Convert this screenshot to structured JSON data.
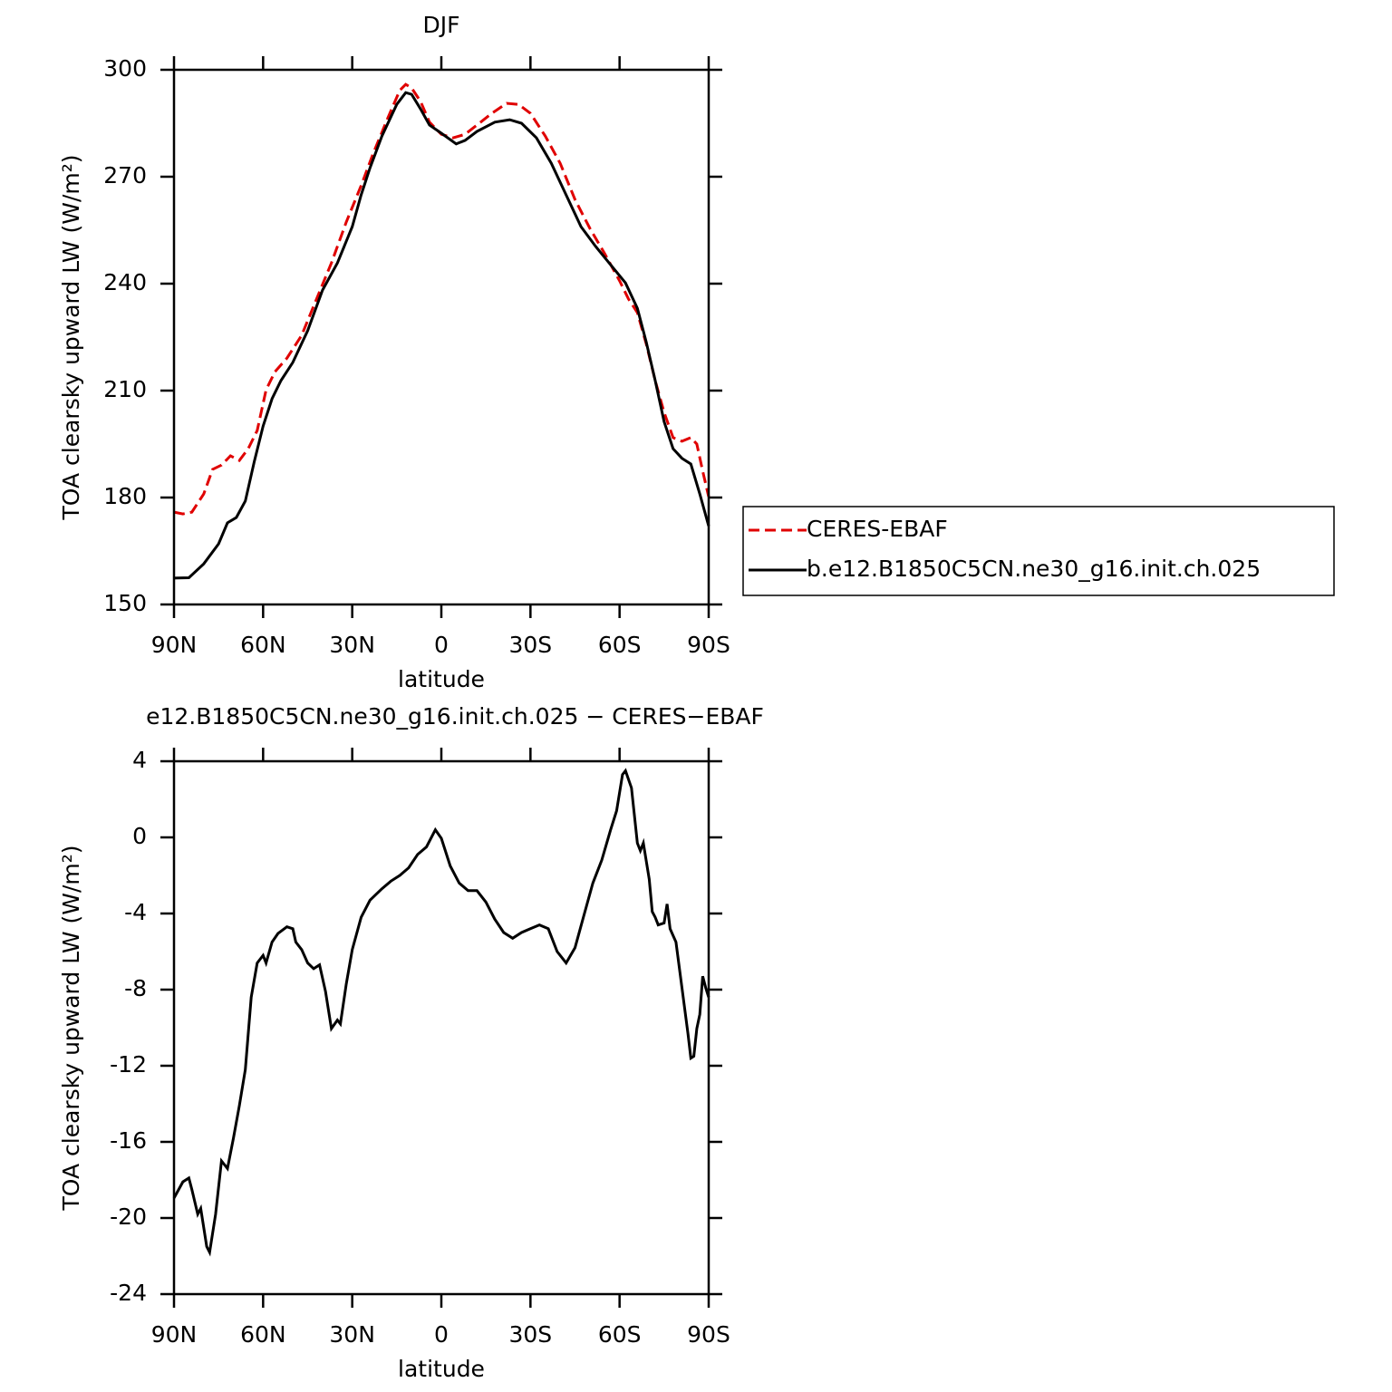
{
  "chart_data": [
    {
      "type": "line",
      "title": "DJF",
      "x_label": "latitude",
      "y_label": "TOA clearsky upward LW (W/m²)",
      "xlim": [
        90,
        -90
      ],
      "xticks": [
        {
          "value": 90,
          "label": "90N"
        },
        {
          "value": 60,
          "label": "60N"
        },
        {
          "value": 30,
          "label": "30N"
        },
        0,
        {
          "value": -30,
          "label": "30S"
        },
        {
          "value": -60,
          "label": "60S"
        },
        {
          "value": -90,
          "label": "90S"
        }
      ],
      "ylim": [
        150,
        300
      ],
      "yticks": [
        150,
        180,
        210,
        240,
        270,
        300
      ],
      "legend": "right",
      "series": [
        {
          "name": "CERES-EBAF",
          "color": "#e00000",
          "line_style": "dashed",
          "x": [
            90,
            87,
            84,
            80,
            77,
            74,
            71,
            68,
            65,
            62,
            59,
            56,
            52,
            47,
            42,
            37,
            32,
            27,
            23,
            18,
            14,
            12,
            10,
            7,
            4,
            0,
            -4,
            -8,
            -12,
            -17,
            -22,
            -26,
            -30,
            -35,
            -40,
            -45,
            -50,
            -55,
            -60,
            -63,
            -66,
            -69,
            -72,
            -75,
            -78,
            -81,
            -84,
            -86,
            -88,
            -90
          ],
          "values": [
            175.9,
            175.4,
            175.9,
            181,
            187.9,
            189.1,
            191.7,
            190.4,
            193.7,
            198.8,
            210.2,
            215.3,
            219.1,
            225.5,
            235.7,
            245.8,
            257.3,
            267.5,
            276.4,
            286.5,
            294.2,
            295.9,
            294.9,
            291.1,
            285.3,
            281.9,
            280.9,
            281.9,
            284.5,
            287.8,
            290.6,
            290.3,
            287.8,
            281.4,
            273.8,
            263.6,
            255.5,
            248.4,
            240.8,
            235.7,
            231.9,
            223,
            212.8,
            203.9,
            196.8,
            195.8,
            196.8,
            195,
            187.4,
            180.2
          ]
        },
        {
          "name": "b.e12.B1850C5CN.ne30_g16.init.ch.025",
          "color": "#000000",
          "line_style": "solid",
          "x": [
            90,
            85,
            80,
            75,
            72,
            69,
            66,
            63,
            60,
            57,
            54,
            50,
            45,
            40,
            35,
            30,
            27,
            24,
            20,
            15,
            12,
            10,
            7,
            4,
            0,
            -5,
            -8,
            -12,
            -18,
            -23,
            -27,
            -32,
            -37,
            -42,
            -47,
            -52,
            -57,
            -62,
            -66,
            -69,
            -72,
            -75,
            -78,
            -81,
            -84,
            -87,
            -90
          ],
          "values": [
            157.4,
            157.5,
            161.4,
            167,
            172.9,
            174.4,
            179,
            190,
            200,
            207.7,
            212.8,
            217.9,
            226.8,
            238.2,
            245.8,
            256,
            264.9,
            272.5,
            281.4,
            290.3,
            293.6,
            293.1,
            289,
            284.5,
            282.2,
            279.2,
            280.2,
            282.7,
            285.3,
            286,
            285,
            280.9,
            273.8,
            264.9,
            256,
            250.4,
            245.3,
            240.2,
            233.1,
            223.5,
            212.8,
            201.3,
            193.7,
            191,
            189.4,
            181,
            172
          ]
        }
      ]
    },
    {
      "type": "line",
      "title": "e12.B1850C5CN.ne30_g16.init.ch.025 − CERES−EBAF",
      "x_label": "latitude",
      "y_label": "TOA clearsky upward LW (W/m²)",
      "xlim": [
        90,
        -90
      ],
      "xticks": [
        {
          "value": 90,
          "label": "90N"
        },
        {
          "value": 60,
          "label": "60N"
        },
        {
          "value": 30,
          "label": "30N"
        },
        0,
        {
          "value": -30,
          "label": "30S"
        },
        {
          "value": -60,
          "label": "60S"
        },
        {
          "value": -90,
          "label": "90S"
        }
      ],
      "ylim": [
        -24,
        4
      ],
      "yticks": [
        -24,
        -20,
        -16,
        -12,
        -8,
        -4,
        0,
        4
      ],
      "color": "#000000",
      "x": [
        90,
        87,
        85,
        84,
        82,
        81,
        79,
        78,
        76,
        74,
        72,
        70,
        68,
        66,
        64,
        62,
        60,
        59,
        57,
        55,
        52,
        50,
        49,
        47,
        45,
        43,
        41,
        39,
        37,
        35,
        34,
        32,
        30,
        27,
        24,
        20,
        17,
        14,
        11,
        8,
        5,
        2,
        0,
        -3,
        -6,
        -9,
        -12,
        -15,
        -18,
        -21,
        -24,
        -27,
        -30,
        -33,
        -36,
        -39,
        -42,
        -45,
        -48,
        -51,
        -54,
        -57,
        -59,
        -61,
        -62,
        -64,
        -66,
        -67,
        -68,
        -70,
        -71,
        -72,
        -73,
        -75,
        -76,
        -77,
        -79,
        -81,
        -83,
        -84,
        -85,
        -86,
        -87,
        -88,
        -89,
        -90
      ],
      "values": [
        -18.95,
        -18.1,
        -17.9,
        -18.5,
        -19.8,
        -19.5,
        -21.5,
        -21.8,
        -19.8,
        -17,
        -17.4,
        -15.8,
        -14.1,
        -12.2,
        -8.4,
        -6.6,
        -6.2,
        -6.6,
        -5.5,
        -5.05,
        -4.7,
        -4.8,
        -5.5,
        -5.9,
        -6.6,
        -6.9,
        -6.7,
        -8.1,
        -10.05,
        -9.6,
        -9.8,
        -7.7,
        -5.9,
        -4.2,
        -3.3,
        -2.7,
        -2.3,
        -2,
        -1.6,
        -0.9,
        -0.5,
        0.4,
        -0.05,
        -1.5,
        -2.4,
        -2.8,
        -2.8,
        -3.4,
        -4.3,
        -5,
        -5.3,
        -5,
        -4.8,
        -4.6,
        -4.8,
        -6,
        -6.6,
        -5.8,
        -4.1,
        -2.4,
        -1.2,
        0.4,
        1.4,
        3.3,
        3.5,
        2.6,
        -0.3,
        -0.7,
        -0.3,
        -2.2,
        -3.9,
        -4.2,
        -4.6,
        -4.5,
        -3.5,
        -4.8,
        -5.5,
        -7.9,
        -10.3,
        -11.6,
        -11.5,
        -10.05,
        -9.3,
        -7.3,
        -7.9,
        -8.4
      ]
    }
  ]
}
